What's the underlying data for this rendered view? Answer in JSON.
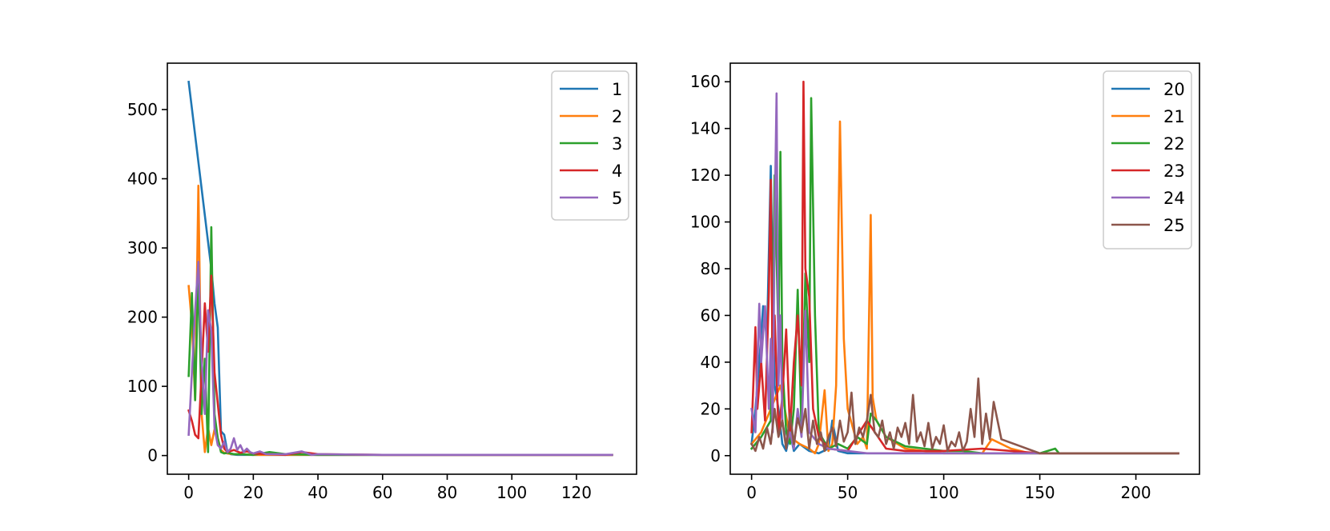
{
  "colors": {
    "c0": "#1f77b4",
    "c1": "#ff7f0e",
    "c2": "#2ca02c",
    "c3": "#d62728",
    "c4": "#9467bd",
    "c5": "#8c564b",
    "axis": "#000000",
    "legend_border": "#cccccc"
  },
  "chart_data": [
    {
      "type": "line",
      "grid": false,
      "legend_position": "top-right",
      "xlim": [
        -6.6,
        138.6
      ],
      "ylim": [
        -27,
        567
      ],
      "xticks": [
        0,
        20,
        40,
        60,
        80,
        100,
        120
      ],
      "yticks": [
        0,
        100,
        200,
        300,
        400,
        500
      ],
      "xtick_labels": [
        "0",
        "20",
        "40",
        "60",
        "80",
        "100",
        "120"
      ],
      "ytick_labels": [
        "0",
        "100",
        "200",
        "300",
        "400",
        "500"
      ],
      "series": [
        {
          "name": "1",
          "color_key": "c0",
          "x": [
            0,
            7,
            8,
            9,
            10,
            11,
            12,
            13,
            15,
            20,
            30,
            40,
            60,
            80,
            100,
            120,
            131
          ],
          "y": [
            540,
            270,
            220,
            185,
            35,
            30,
            5,
            2,
            1,
            1,
            1,
            1,
            1,
            1,
            1,
            1,
            1
          ]
        },
        {
          "name": "2",
          "color_key": "c1",
          "x": [
            0,
            1,
            2,
            3,
            4,
            5,
            6,
            7,
            8,
            9,
            10,
            11,
            12,
            14,
            16,
            20,
            25,
            30,
            40,
            60,
            80,
            100,
            120,
            131
          ],
          "y": [
            245,
            190,
            80,
            390,
            60,
            5,
            40,
            15,
            38,
            25,
            8,
            4,
            3,
            2,
            2,
            1,
            1,
            1,
            1,
            1,
            1,
            1,
            1,
            1
          ]
        },
        {
          "name": "3",
          "color_key": "c2",
          "x": [
            0,
            1,
            2,
            3,
            4,
            5,
            6,
            7,
            8,
            9,
            10,
            11,
            12,
            14,
            16,
            20,
            25,
            30,
            40,
            60,
            80,
            100,
            120,
            131
          ],
          "y": [
            115,
            235,
            80,
            270,
            60,
            140,
            5,
            330,
            60,
            25,
            5,
            3,
            4,
            2,
            2,
            1,
            5,
            2,
            1,
            1,
            1,
            1,
            1,
            1
          ]
        },
        {
          "name": "4",
          "color_key": "c3",
          "x": [
            0,
            1,
            2,
            3,
            4,
            5,
            6,
            7,
            8,
            9,
            10,
            11,
            12,
            14,
            16,
            18,
            20,
            25,
            30,
            35,
            40,
            60,
            80,
            100,
            120,
            131
          ],
          "y": [
            65,
            50,
            30,
            25,
            120,
            220,
            150,
            260,
            120,
            75,
            30,
            10,
            5,
            8,
            4,
            6,
            3,
            2,
            1,
            5,
            2,
            1,
            1,
            1,
            1,
            1
          ]
        },
        {
          "name": "5",
          "color_key": "c4",
          "x": [
            0,
            1,
            2,
            3,
            4,
            5,
            6,
            7,
            8,
            9,
            10,
            11,
            12,
            13,
            14,
            15,
            16,
            17,
            18,
            19,
            20,
            22,
            24,
            30,
            35,
            38,
            40,
            60,
            80,
            100,
            120,
            131
          ],
          "y": [
            30,
            120,
            210,
            280,
            140,
            60,
            210,
            180,
            40,
            15,
            10,
            20,
            5,
            10,
            25,
            8,
            15,
            5,
            10,
            5,
            3,
            6,
            2,
            2,
            6,
            1,
            2,
            1,
            1,
            1,
            1,
            1
          ]
        }
      ]
    },
    {
      "type": "line",
      "grid": false,
      "legend_position": "top-right",
      "xlim": [
        -11.1,
        233.1
      ],
      "ylim": [
        -7.95,
        167.95
      ],
      "xticks": [
        0,
        50,
        100,
        150,
        200
      ],
      "yticks": [
        0,
        20,
        40,
        60,
        80,
        100,
        120,
        140,
        160
      ],
      "xtick_labels": [
        "0",
        "50",
        "100",
        "150",
        "200"
      ],
      "ytick_labels": [
        "0",
        "20",
        "40",
        "60",
        "80",
        "100",
        "120",
        "140",
        "160"
      ],
      "series": [
        {
          "name": "20",
          "color_key": "c0",
          "x": [
            0,
            2,
            4,
            6,
            8,
            10,
            11,
            12,
            14,
            16,
            18,
            20,
            22,
            25,
            30,
            35,
            40,
            42,
            45,
            50,
            60,
            70,
            80,
            100,
            120,
            150,
            160,
            180,
            200,
            222
          ],
          "y": [
            5,
            20,
            40,
            64,
            50,
            124,
            70,
            30,
            20,
            5,
            2,
            10,
            2,
            5,
            2,
            1,
            3,
            15,
            2,
            1,
            1,
            1,
            1,
            1,
            1,
            1,
            1,
            1,
            1,
            1
          ]
        },
        {
          "name": "21",
          "color_key": "c1",
          "x": [
            0,
            5,
            10,
            15,
            20,
            25,
            30,
            33,
            35,
            38,
            40,
            42,
            44,
            46,
            48,
            50,
            55,
            58,
            60,
            62,
            63,
            65,
            70,
            80,
            90,
            100,
            110,
            120,
            125,
            135,
            145,
            150,
            160,
            180,
            200,
            222
          ],
          "y": [
            5,
            10,
            20,
            30,
            8,
            5,
            3,
            1,
            5,
            28,
            2,
            5,
            30,
            143,
            50,
            20,
            5,
            8,
            3,
            103,
            25,
            15,
            8,
            3,
            2,
            1,
            1,
            1,
            7,
            3,
            1,
            1,
            1,
            1,
            1,
            1
          ]
        },
        {
          "name": "22",
          "color_key": "c2",
          "x": [
            0,
            5,
            10,
            12,
            14,
            15,
            16,
            18,
            20,
            22,
            24,
            26,
            28,
            30,
            31,
            33,
            35,
            40,
            45,
            50,
            55,
            60,
            62,
            65,
            70,
            80,
            90,
            100,
            110,
            120,
            150,
            158,
            160,
            180,
            200,
            222
          ],
          "y": [
            3,
            8,
            15,
            120,
            50,
            130,
            40,
            10,
            5,
            20,
            71,
            10,
            78,
            40,
            153,
            60,
            10,
            3,
            5,
            3,
            8,
            5,
            18,
            15,
            8,
            4,
            3,
            2,
            2,
            1,
            1,
            3,
            1,
            1,
            1,
            1
          ]
        },
        {
          "name": "23",
          "color_key": "c3",
          "x": [
            0,
            2,
            3,
            5,
            7,
            9,
            10,
            11,
            12,
            14,
            16,
            18,
            20,
            22,
            24,
            26,
            27,
            28,
            30,
            32,
            35,
            40,
            50,
            60,
            70,
            80,
            100,
            120,
            150,
            160,
            180,
            200,
            222
          ],
          "y": [
            10,
            55,
            20,
            40,
            15,
            70,
            118,
            30,
            60,
            10,
            25,
            54,
            10,
            40,
            60,
            30,
            160,
            80,
            68,
            20,
            8,
            3,
            2,
            15,
            3,
            2,
            2,
            3,
            1,
            1,
            1,
            1,
            1
          ]
        },
        {
          "name": "24",
          "color_key": "c4",
          "x": [
            0,
            2,
            4,
            5,
            7,
            9,
            10,
            11,
            12,
            13,
            14,
            15,
            16,
            18,
            20,
            22,
            24,
            26,
            28,
            30,
            35,
            40,
            50,
            60,
            70,
            80,
            100,
            120,
            150,
            160,
            180,
            200,
            222
          ],
          "y": [
            20,
            10,
            65,
            40,
            64,
            20,
            50,
            10,
            100,
            155,
            30,
            60,
            15,
            5,
            10,
            3,
            20,
            8,
            62,
            10,
            5,
            3,
            2,
            1,
            1,
            1,
            1,
            1,
            1,
            1,
            1,
            1,
            1
          ]
        },
        {
          "name": "25",
          "color_key": "c5",
          "x": [
            0,
            2,
            4,
            6,
            8,
            10,
            12,
            14,
            16,
            18,
            20,
            22,
            24,
            26,
            28,
            30,
            32,
            34,
            36,
            38,
            40,
            42,
            44,
            46,
            48,
            50,
            52,
            54,
            56,
            58,
            60,
            62,
            64,
            66,
            68,
            70,
            72,
            74,
            76,
            78,
            80,
            82,
            84,
            86,
            88,
            90,
            92,
            94,
            96,
            98,
            100,
            102,
            104,
            106,
            108,
            110,
            112,
            114,
            116,
            118,
            120,
            122,
            124,
            126,
            130,
            140,
            150,
            160,
            180,
            200,
            222
          ],
          "y": [
            5,
            2,
            8,
            3,
            12,
            5,
            20,
            8,
            15,
            3,
            18,
            5,
            16,
            10,
            20,
            3,
            15,
            5,
            10,
            2,
            8,
            12,
            4,
            15,
            6,
            10,
            27,
            5,
            12,
            8,
            15,
            26,
            10,
            8,
            15,
            5,
            10,
            3,
            12,
            8,
            14,
            5,
            26,
            6,
            10,
            4,
            14,
            3,
            8,
            5,
            13,
            2,
            6,
            4,
            10,
            2,
            6,
            20,
            8,
            33,
            5,
            18,
            7,
            23,
            7,
            4,
            1,
            1,
            1,
            1,
            1
          ]
        }
      ]
    }
  ]
}
